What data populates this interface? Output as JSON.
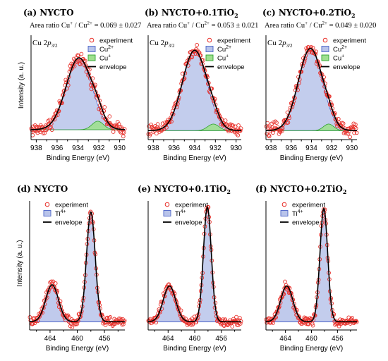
{
  "chart_data": [
    {
      "type": "line",
      "panel_label": "(a)",
      "title": "NYCTO",
      "ratio_text": "Area ratio Cu",
      "ratio_sup1": "+",
      "ratio_mid": " / Cu",
      "ratio_sup2": "2+",
      "ratio_value": " = 0.069 ± 0.027",
      "core_level": "Cu 2",
      "core_italic": "p",
      "core_sub": "3/2",
      "xlabel": "Binding Energy (eV)",
      "ylabel": "Intensity (a. u.)",
      "x_range": [
        938.5,
        929.5
      ],
      "x_ticks": [
        "938",
        "936",
        "934",
        "932",
        "930"
      ],
      "legend": [
        {
          "label": "experiment",
          "kind": "marker"
        },
        {
          "label": "Cu",
          "sup": "2+",
          "kind": "swatch"
        },
        {
          "label": "Cu",
          "sup": "+",
          "kind": "swatch2"
        },
        {
          "label": "envelope",
          "kind": "line"
        }
      ],
      "peaks": [
        {
          "name": "Cu2+",
          "center": 933.9,
          "fwhm": 2.9,
          "height": 0.76
        },
        {
          "name": "Cu+",
          "center": 932.1,
          "fwhm": 1.3,
          "height": 0.09
        }
      ],
      "baseline": 0.03,
      "noise": 0.045,
      "n_points": 150
    },
    {
      "type": "line",
      "panel_label": "(b)",
      "title": "NYCTO+0.1TiO",
      "title_sub": "2",
      "ratio_text": "Area ratio Cu",
      "ratio_sup1": "+",
      "ratio_mid": " / Cu",
      "ratio_sup2": "2+",
      "ratio_value": " = 0.053 ± 0.021",
      "core_level": "Cu 2",
      "core_italic": "p",
      "core_sub": "3/2",
      "xlabel": "Binding Energy (eV)",
      "ylabel": "",
      "x_range": [
        938.5,
        929.5
      ],
      "x_ticks": [
        "938",
        "936",
        "934",
        "932",
        "930"
      ],
      "legend": [
        {
          "label": "experiment",
          "kind": "marker"
        },
        {
          "label": "Cu",
          "sup": "2+",
          "kind": "swatch"
        },
        {
          "label": "Cu",
          "sup": "+",
          "kind": "swatch2"
        },
        {
          "label": "envelope",
          "kind": "line"
        }
      ],
      "peaks": [
        {
          "name": "Cu2+",
          "center": 934.0,
          "fwhm": 2.8,
          "height": 0.85
        },
        {
          "name": "Cu+",
          "center": 932.2,
          "fwhm": 1.3,
          "height": 0.07
        }
      ],
      "baseline": 0.02,
      "noise": 0.04,
      "n_points": 150
    },
    {
      "type": "line",
      "panel_label": "(c)",
      "title": "NYCTO+0.2TiO",
      "title_sub": "2",
      "ratio_text": "Area ratio Cu",
      "ratio_sup1": "+",
      "ratio_mid": " / Cu",
      "ratio_sup2": "2+",
      "ratio_value": " = 0.049 ± 0.020",
      "core_level": "Cu 2",
      "core_italic": "p",
      "core_sub": "3/2",
      "xlabel": "Binding Energy (eV)",
      "ylabel": "",
      "x_range": [
        938.5,
        929.5
      ],
      "x_ticks": [
        "938",
        "936",
        "934",
        "932",
        "930"
      ],
      "legend": [
        {
          "label": "experiment",
          "kind": "marker"
        },
        {
          "label": "Cu",
          "sup": "2+",
          "kind": "swatch"
        },
        {
          "label": "Cu",
          "sup": "+",
          "kind": "swatch2"
        },
        {
          "label": "envelope",
          "kind": "line"
        }
      ],
      "peaks": [
        {
          "name": "Cu2+",
          "center": 934.1,
          "fwhm": 2.8,
          "height": 0.87
        },
        {
          "name": "Cu+",
          "center": 932.3,
          "fwhm": 1.2,
          "height": 0.07
        }
      ],
      "baseline": 0.02,
      "noise": 0.04,
      "n_points": 150
    },
    {
      "type": "line",
      "panel_label": "(d)",
      "title": "NYCTO",
      "xlabel": "Binding Energy (eV)",
      "ylabel": "Intensity (a. u.)",
      "x_range": [
        467.0,
        453.0
      ],
      "x_ticks": [
        "464",
        "460",
        "456"
      ],
      "legend": [
        {
          "label": "experiment",
          "kind": "marker"
        },
        {
          "label": "Ti",
          "sup": "4+",
          "kind": "swatch"
        },
        {
          "label": "envelope",
          "kind": "line"
        }
      ],
      "peaks": [
        {
          "name": "Ti4+ 2p3/2",
          "center": 458.0,
          "fwhm": 1.5,
          "height": 0.92
        },
        {
          "name": "Ti4+ 2p1/2",
          "center": 463.7,
          "fwhm": 2.2,
          "height": 0.31
        }
      ],
      "baseline": 0.01,
      "noise": 0.025,
      "n_points": 160
    },
    {
      "type": "line",
      "panel_label": "(e)",
      "title": "NYCTO+0.1TiO",
      "title_sub": "2",
      "xlabel": "Binding Energy (eV)",
      "ylabel": "",
      "x_range": [
        467.0,
        453.0
      ],
      "x_ticks": [
        "464",
        "460",
        "456"
      ],
      "legend": [
        {
          "label": "experiment",
          "kind": "marker"
        },
        {
          "label": "Ti",
          "sup": "4+",
          "kind": "swatch"
        },
        {
          "label": "envelope",
          "kind": "line"
        }
      ],
      "peaks": [
        {
          "name": "Ti4+ 2p3/2",
          "center": 458.1,
          "fwhm": 1.4,
          "height": 0.96
        },
        {
          "name": "Ti4+ 2p1/2",
          "center": 463.8,
          "fwhm": 2.2,
          "height": 0.3
        }
      ],
      "baseline": 0.01,
      "noise": 0.025,
      "n_points": 160
    },
    {
      "type": "line",
      "panel_label": "(f)",
      "title": "NYCTO+0.2TiO",
      "title_sub": "2",
      "xlabel": "Binding Energy (eV)",
      "ylabel": "",
      "x_range": [
        467.0,
        453.0
      ],
      "x_ticks": [
        "464",
        "460",
        "456"
      ],
      "legend": [
        {
          "label": "experiment",
          "kind": "marker"
        },
        {
          "label": "Ti",
          "sup": "4+",
          "kind": "swatch"
        },
        {
          "label": "envelope",
          "kind": "line"
        }
      ],
      "peaks": [
        {
          "name": "Ti4+ 2p3/2",
          "center": 458.1,
          "fwhm": 1.4,
          "height": 0.95
        },
        {
          "name": "Ti4+ 2p1/2",
          "center": 463.8,
          "fwhm": 2.2,
          "height": 0.3
        }
      ],
      "baseline": 0.01,
      "noise": 0.025,
      "n_points": 160
    }
  ],
  "colors": {
    "marker": "#e8302a",
    "main_fill": "#b9c4ea",
    "main_stroke": "#4a62c8",
    "minor_fill": "#9fe08f",
    "minor_stroke": "#2fa32f",
    "envelope": "#000000"
  }
}
